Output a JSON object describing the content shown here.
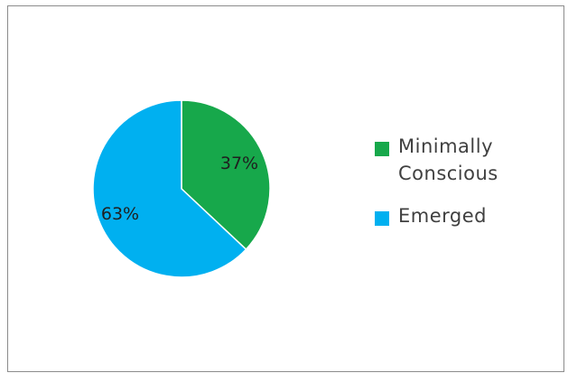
{
  "chart_data": {
    "type": "pie",
    "categories": [
      "Minimally Conscious",
      "Emerged"
    ],
    "values": [
      37,
      63
    ],
    "data_labels": [
      "37%",
      "63%"
    ],
    "colors": [
      "#17a84b",
      "#00b0f0"
    ],
    "start_angle": "12 o'clock",
    "direction": "clockwise",
    "legend_position": "right",
    "legend": [
      {
        "label": "Minimally Conscious",
        "line1": "Minimally",
        "line2": "Conscious",
        "color": "#17a84b"
      },
      {
        "label": "Emerged",
        "line1": "Emerged",
        "color": "#00b0f0"
      }
    ],
    "title": ""
  }
}
